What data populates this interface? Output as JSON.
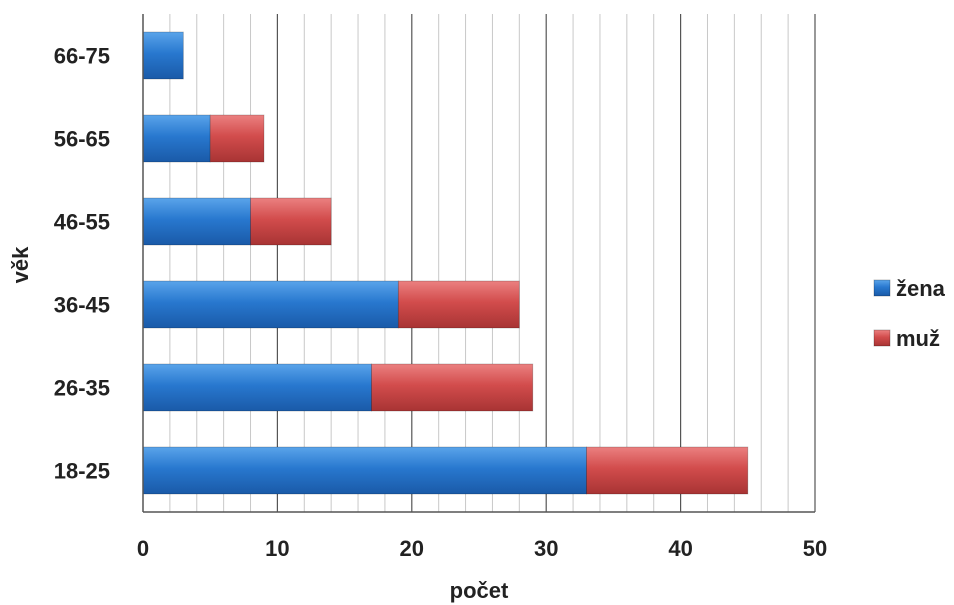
{
  "chart_data": {
    "type": "bar",
    "orientation": "horizontal",
    "stacked": true,
    "categories": [
      "18-25",
      "26-35",
      "36-45",
      "46-55",
      "56-65",
      "66-75"
    ],
    "series": [
      {
        "name": "žena",
        "values": [
          33,
          17,
          19,
          8,
          5,
          3
        ],
        "color": "#2878cf"
      },
      {
        "name": "muž",
        "values": [
          12,
          12,
          9,
          6,
          4,
          0
        ],
        "color": "#d24c4c"
      }
    ],
    "xlabel": "počet",
    "ylabel": "věk",
    "xlim": [
      0,
      50
    ],
    "xticks": [
      "0",
      "10",
      "20",
      "30",
      "40",
      "50"
    ],
    "grid": true,
    "legend_position": "right"
  }
}
